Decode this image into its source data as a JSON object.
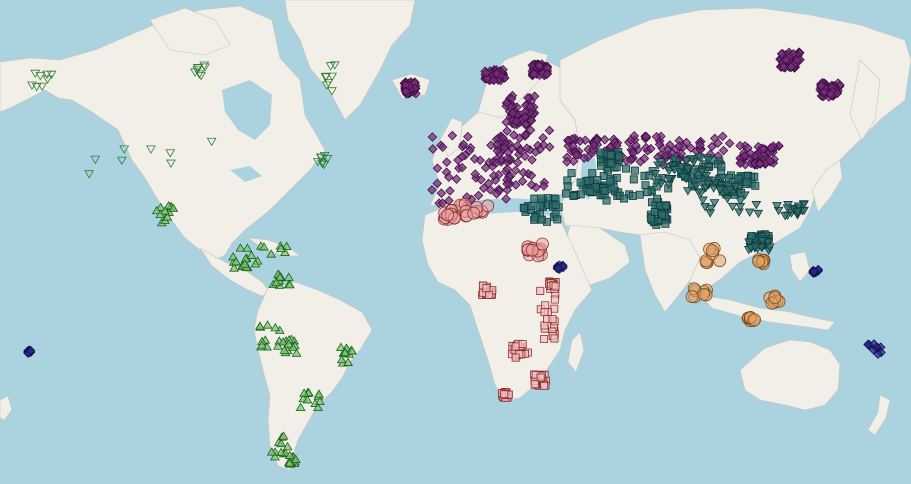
{
  "map": {
    "background_color": "#aad3df",
    "land_color": "#f2efe9",
    "markers": [
      {
        "name": "north-america-triangles",
        "symbol": "triangle-down",
        "fill": "none",
        "stroke": "#2e7d32",
        "count": 40
      },
      {
        "name": "latin-america-triangles",
        "symbol": "triangle-up",
        "fill": "#7bc96f",
        "stroke": "#1b5e20",
        "count": 120
      },
      {
        "name": "europe-diamonds",
        "symbol": "diamond",
        "fill": "#7b2d7f",
        "stroke": "#3b0f3f",
        "count": 650
      },
      {
        "name": "asia-squares",
        "symbol": "square",
        "fill": "#2f6f6f",
        "stroke": "#0f3b3b",
        "count": 260
      },
      {
        "name": "east-asia-triangles",
        "symbol": "triangle-down",
        "fill": "#2f6f6f",
        "stroke": "#0f3b3b",
        "count": 120
      },
      {
        "name": "north-africa-circles",
        "symbol": "circle",
        "fill": "#e9a3a3",
        "stroke": "#8b2e2e",
        "count": 40
      },
      {
        "name": "africa-squares",
        "symbol": "square",
        "fill": "#f3c0c0",
        "stroke": "#8b2e2e",
        "count": 120
      },
      {
        "name": "southeast-asia-circles",
        "symbol": "circle",
        "fill": "#e2a266",
        "stroke": "#7a4a1a",
        "count": 40
      },
      {
        "name": "oceania-diamonds",
        "symbol": "diamond",
        "fill": "#2a2a8c",
        "stroke": "#0f0f4a",
        "count": 40
      }
    ]
  }
}
